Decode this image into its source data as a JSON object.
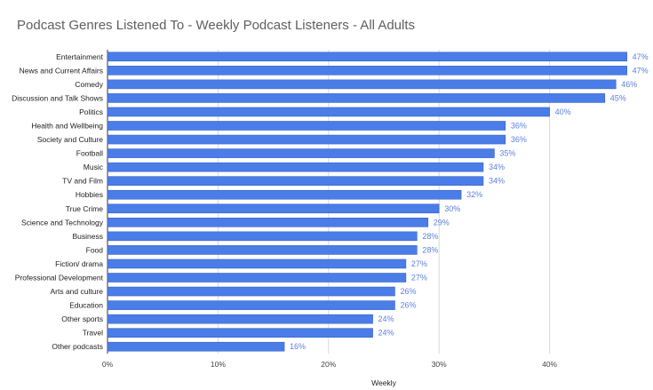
{
  "chart_data": {
    "type": "bar",
    "orientation": "horizontal",
    "title": "Podcast Genres Listened To - Weekly Podcast Listeners - All Adults",
    "xlabel": "Weekly",
    "ylabel": "",
    "categories": [
      "Entertainment",
      "News and Current Affairs",
      "Comedy",
      "Discussion and Talk Shows",
      "Politics",
      "Health and Wellbeing",
      "Society and Culture",
      "Football",
      "Music",
      "TV and Film",
      "Hobbies",
      "True Crime",
      "Science and Technology",
      "Business",
      "Food",
      "Fiction/ drama",
      "Professional Development",
      "Arts and culture",
      "Education",
      "Other sports",
      "Travel",
      "Other podcasts"
    ],
    "values": [
      47,
      47,
      46,
      45,
      40,
      36,
      36,
      35,
      34,
      34,
      32,
      30,
      29,
      28,
      28,
      27,
      27,
      26,
      26,
      24,
      24,
      16
    ],
    "data_labels": [
      "47%",
      "47%",
      "46%",
      "45%",
      "40%",
      "36%",
      "36%",
      "35%",
      "34%",
      "34%",
      "32%",
      "30%",
      "29%",
      "28%",
      "28%",
      "27%",
      "27%",
      "26%",
      "26%",
      "24%",
      "24%",
      "16%"
    ],
    "xlim": [
      0,
      50
    ],
    "xticks": [
      0,
      10,
      20,
      30,
      40
    ],
    "xtick_labels": [
      "0%",
      "10%",
      "20%",
      "30%",
      "40%"
    ],
    "grid": true,
    "legend": "none",
    "colors": {
      "bar": "#4a7de8",
      "bar_stroke": "#3a62c4",
      "data_label": "#5b80e0",
      "gridline": "#d9d9d9",
      "title": "#5f5f5f"
    }
  }
}
